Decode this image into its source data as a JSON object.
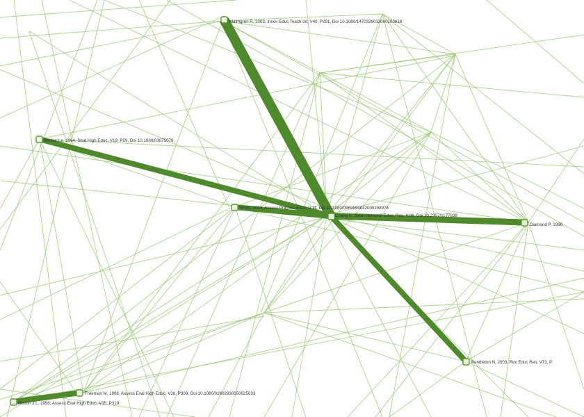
{
  "colors": {
    "background": "#ffffff",
    "thin_edge": "#8fc46b",
    "heavy_edge": "#4e8a2c",
    "node_fill": "#e8f3dc",
    "node_stroke": "#5f9a3a",
    "label": "#333333"
  },
  "nodes": [
    {
      "id": "hub",
      "label": "Chang K, Seon Hemphill Educ, Res, V.06, Doi 10.2307/1177838"
    },
    {
      "id": "n_top",
      "label": "Malmgren R, 2003, Innov Educ Teach Int, V40, P291, Doi 10.1080/1470329032000103816"
    },
    {
      "id": "n_left",
      "label": "Becker Le, 1994, Stud High Educ, V19, P59, Doi 10.1080/03075079"
    },
    {
      "id": "n_mid",
      "label": "Smith, 2004, Assess Practice Educ, V.11, Doi 10.1080/0969594042000208974"
    },
    {
      "id": "n_right",
      "label": "Diamond P, 1996,"
    },
    {
      "id": "n_lowright",
      "label": "Pendleton N, 2003, Rev Educ Res, V73, P"
    },
    {
      "id": "n_bottom",
      "label": "Freeman M, 1998, Assess Eval High Educ, V26, P309, Doi 10.1080/02602930050025033"
    },
    {
      "id": "n_bottomleft",
      "label": "Bisson J L, 1998, Assess Eval High Educ, V15, P319"
    }
  ]
}
